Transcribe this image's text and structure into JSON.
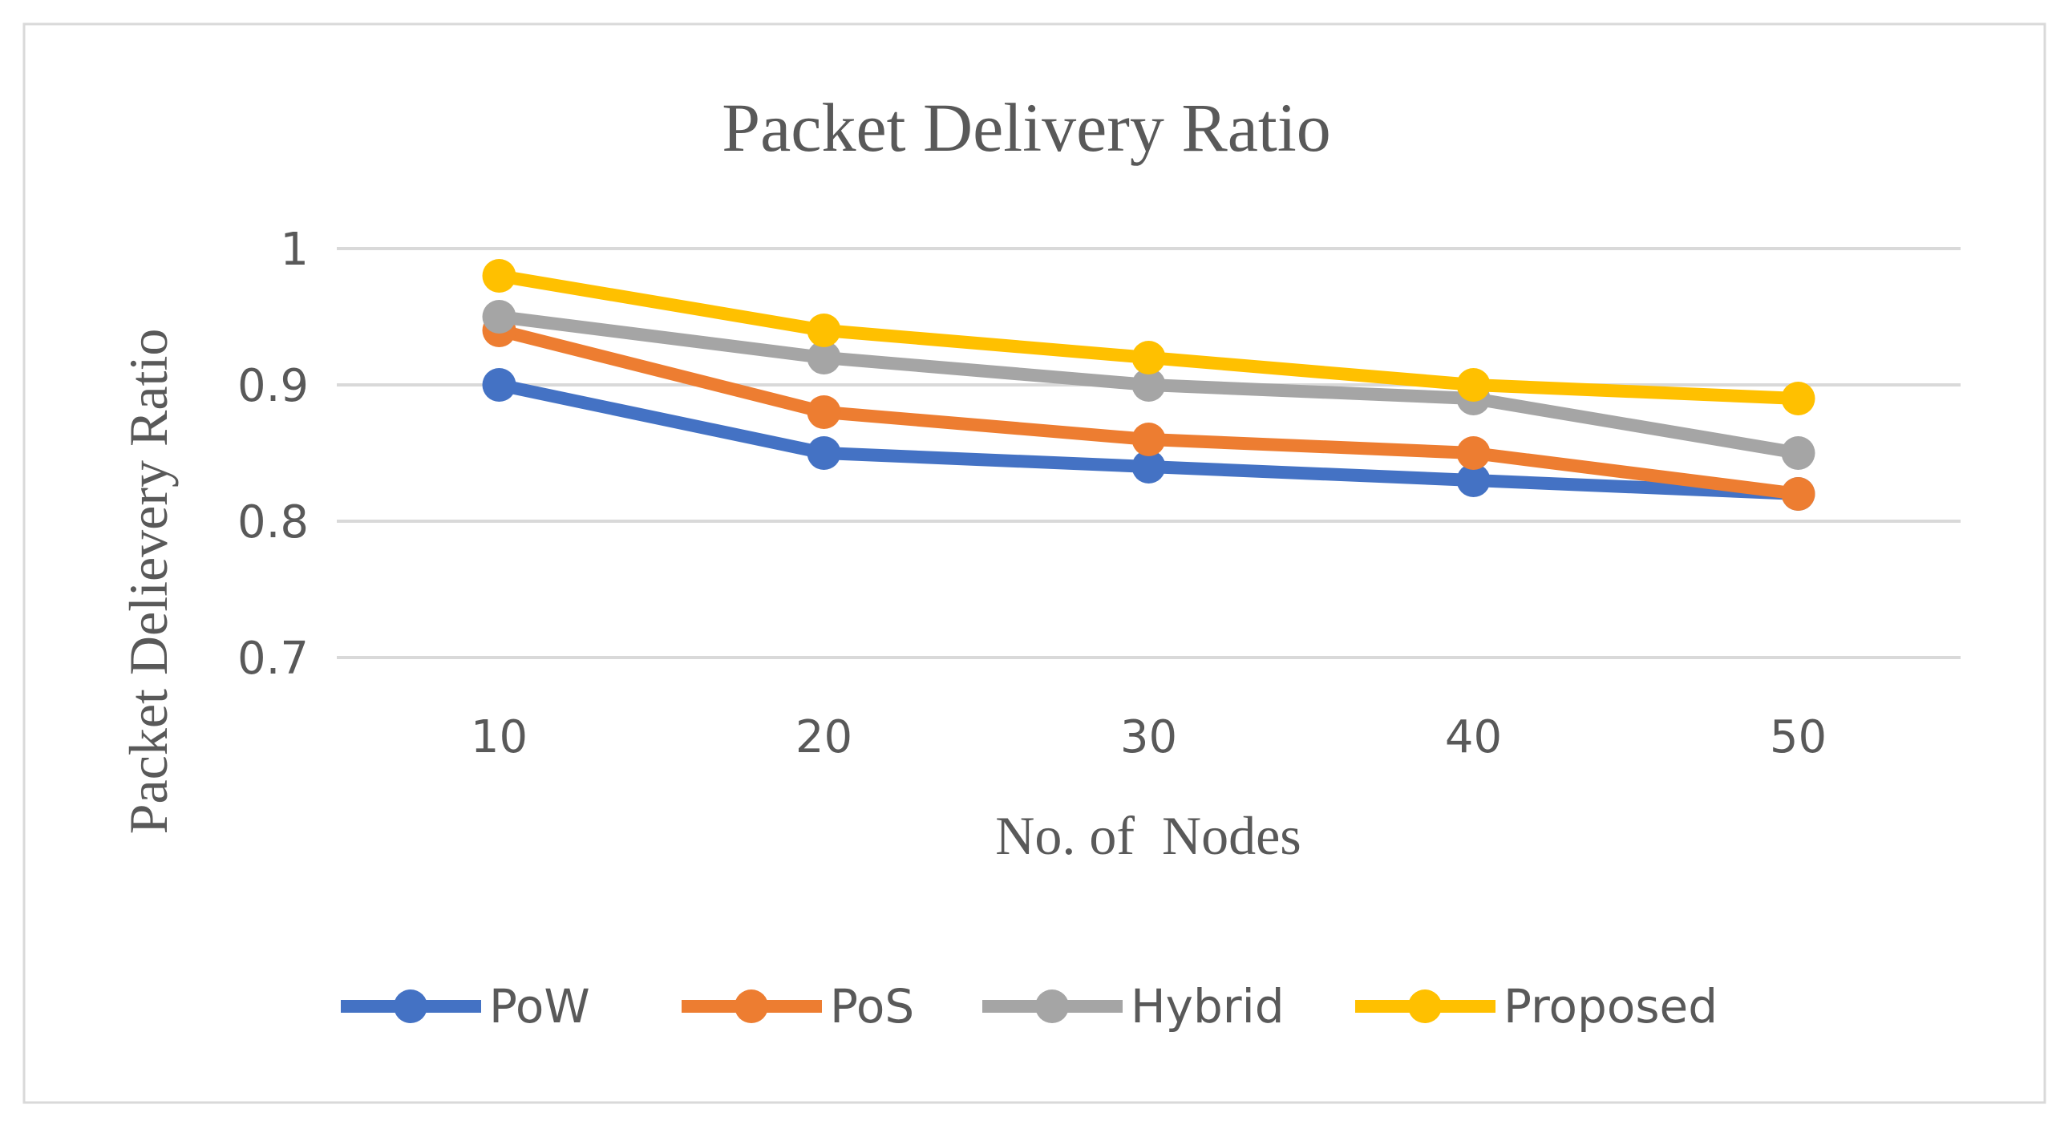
{
  "chart_data": {
    "type": "line",
    "title": "Packet Delivery Ratio",
    "xlabel": "No. of  Nodes",
    "ylabel": "Packet Delievery Ratio",
    "categories": [
      "10",
      "20",
      "30",
      "40",
      "50"
    ],
    "ylim": [
      0.7,
      1.0
    ],
    "yticks": [
      0.7,
      0.8,
      0.9,
      1.0
    ],
    "ytick_labels": [
      "0.7",
      "0.8",
      "0.9",
      "1"
    ],
    "grid": true,
    "legend_position": "bottom",
    "series": [
      {
        "name": "PoW",
        "color": "#4472C4",
        "values": [
          0.9,
          0.85,
          0.84,
          0.83,
          0.82
        ]
      },
      {
        "name": "PoS",
        "color": "#ED7D31",
        "values": [
          0.94,
          0.88,
          0.86,
          0.85,
          0.82
        ]
      },
      {
        "name": "Hybrid",
        "color": "#A5A5A5",
        "values": [
          0.95,
          0.92,
          0.9,
          0.89,
          0.85
        ]
      },
      {
        "name": "Proposed",
        "color": "#FFC000",
        "values": [
          0.98,
          0.94,
          0.92,
          0.9,
          0.89
        ]
      }
    ]
  }
}
